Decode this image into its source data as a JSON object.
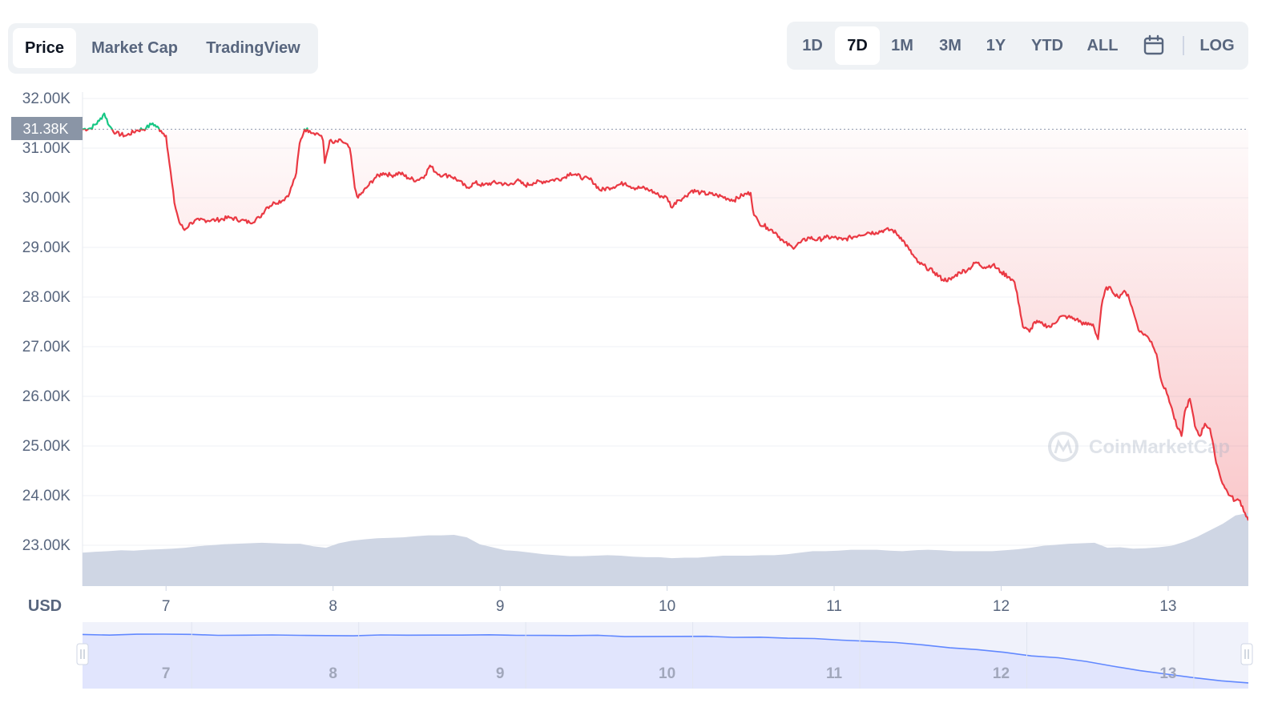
{
  "tabs": [
    {
      "label": "Price",
      "active": true
    },
    {
      "label": "Market Cap",
      "active": false
    },
    {
      "label": "TradingView",
      "active": false
    }
  ],
  "ranges": [
    {
      "label": "1D",
      "active": false
    },
    {
      "label": "7D",
      "active": true
    },
    {
      "label": "1M",
      "active": false
    },
    {
      "label": "3M",
      "active": false
    },
    {
      "label": "1Y",
      "active": false
    },
    {
      "label": "YTD",
      "active": false
    },
    {
      "label": "ALL",
      "active": false
    }
  ],
  "log_label": "LOG",
  "watermark": "CoinMarketCap",
  "currency_label": "USD",
  "current_price_label": "31.38K",
  "colors": {
    "down": "#ea3943",
    "up": "#16c784",
    "volume": "#cfd6e4",
    "navigator": "#6188ff",
    "navigator_fill": "#e1e5fd"
  },
  "chart_data": {
    "type": "line",
    "currency": "USD",
    "y_ticks": [
      "32.00K",
      "31.00K",
      "30.00K",
      "29.00K",
      "28.00K",
      "27.00K",
      "26.00K",
      "25.00K",
      "24.00K",
      "23.00K"
    ],
    "y_tick_values": [
      32000,
      31000,
      30000,
      29000,
      28000,
      27000,
      26000,
      25000,
      24000,
      23000
    ],
    "ylim": [
      22200,
      32000
    ],
    "xlim": [
      6.5,
      13.48
    ],
    "x_ticks": [
      "7",
      "8",
      "9",
      "10",
      "11",
      "12",
      "13"
    ],
    "x_tick_values": [
      7,
      8,
      9,
      10,
      11,
      12,
      13
    ],
    "reference_price": 31380,
    "series": [
      {
        "values_x": [
          6.5,
          6.55,
          6.6,
          6.63,
          6.66,
          6.7,
          6.76,
          6.82,
          6.88,
          6.92,
          6.97,
          7.0,
          7.02,
          7.05,
          7.08,
          7.11,
          7.15,
          7.2,
          7.3,
          7.38,
          7.45,
          7.5,
          7.56,
          7.6,
          7.65,
          7.7,
          7.74,
          7.78,
          7.8,
          7.83,
          7.86,
          7.9,
          7.93,
          7.94,
          7.95,
          7.98,
          8.0,
          8.05,
          8.1,
          8.13,
          8.15,
          8.2,
          8.25,
          8.3,
          8.35,
          8.4,
          8.45,
          8.5,
          8.55,
          8.58,
          8.62,
          8.66,
          8.7,
          8.75,
          8.8,
          8.85,
          8.9,
          8.95,
          9.0,
          9.05,
          9.1,
          9.15,
          9.2,
          9.3,
          9.38,
          9.42,
          9.46,
          9.5,
          9.55,
          9.6,
          9.65,
          9.7,
          9.75,
          9.8,
          9.85,
          9.9,
          9.95,
          10.0,
          10.03,
          10.06,
          10.1,
          10.15,
          10.2,
          10.3,
          10.4,
          10.45,
          10.5,
          10.52,
          10.55,
          10.6,
          10.65,
          10.7,
          10.75,
          10.8,
          10.85,
          10.9,
          10.95,
          11.0,
          11.05,
          11.1,
          11.15,
          11.2,
          11.25,
          11.3,
          11.35,
          11.4,
          11.45,
          11.5,
          11.55,
          11.6,
          11.65,
          11.7,
          11.75,
          11.8,
          11.85,
          11.9,
          11.95,
          12.0,
          12.05,
          12.08,
          12.11,
          12.13,
          12.17,
          12.2,
          12.25,
          12.3,
          12.35,
          12.4,
          12.45,
          12.5,
          12.55,
          12.58,
          12.6,
          12.63,
          12.66,
          12.7,
          12.73,
          12.76,
          12.8,
          12.83,
          12.86,
          12.9,
          12.93,
          12.96,
          13.0,
          13.03,
          13.05,
          13.08,
          13.1,
          13.13,
          13.16,
          13.19,
          13.22,
          13.25,
          13.28,
          13.31,
          13.34,
          13.37,
          13.4,
          13.43,
          13.46,
          13.48
        ],
        "values_y": [
          31380,
          31400,
          31550,
          31700,
          31450,
          31300,
          31250,
          31350,
          31400,
          31500,
          31350,
          31250,
          30700,
          29900,
          29500,
          29350,
          29500,
          29550,
          29550,
          29600,
          29550,
          29500,
          29600,
          29800,
          29900,
          29950,
          30100,
          30500,
          31100,
          31380,
          31350,
          31300,
          31250,
          31150,
          30700,
          31150,
          31100,
          31150,
          31000,
          30200,
          30000,
          30200,
          30400,
          30500,
          30450,
          30500,
          30400,
          30350,
          30450,
          30650,
          30500,
          30450,
          30450,
          30350,
          30200,
          30300,
          30250,
          30300,
          30300,
          30250,
          30350,
          30250,
          30300,
          30350,
          30400,
          30500,
          30450,
          30400,
          30350,
          30150,
          30200,
          30250,
          30300,
          30200,
          30200,
          30150,
          30050,
          30000,
          29800,
          29950,
          30000,
          30150,
          30100,
          30050,
          29950,
          30050,
          30100,
          29650,
          29500,
          29400,
          29300,
          29100,
          29000,
          29100,
          29200,
          29150,
          29200,
          29200,
          29150,
          29200,
          29250,
          29300,
          29300,
          29350,
          29350,
          29200,
          28950,
          28700,
          28600,
          28500,
          28350,
          28350,
          28500,
          28550,
          28700,
          28600,
          28650,
          28500,
          28400,
          28300,
          27800,
          27400,
          27300,
          27500,
          27450,
          27400,
          27600,
          27600,
          27550,
          27450,
          27450,
          27150,
          27800,
          28200,
          28150,
          28000,
          28100,
          28050,
          27600,
          27300,
          27250,
          27100,
          26850,
          26300,
          26000,
          25650,
          25400,
          25200,
          25700,
          25950,
          25400,
          25200,
          25450,
          25350,
          24800,
          24400,
          24150,
          24000,
          23900,
          23900,
          23650,
          23500
        ]
      }
    ],
    "volume_values": [
      22850,
      22870,
      22880,
      22900,
      22890,
      22910,
      22920,
      22930,
      22950,
      22980,
      23000,
      23020,
      23030,
      23040,
      23050,
      23040,
      23030,
      23030,
      22980,
      22950,
      23040,
      23090,
      23120,
      23140,
      23150,
      23160,
      23180,
      23200,
      23200,
      23210,
      23160,
      23020,
      22960,
      22900,
      22880,
      22850,
      22820,
      22800,
      22780,
      22780,
      22790,
      22800,
      22790,
      22770,
      22760,
      22760,
      22740,
      22750,
      22750,
      22770,
      22790,
      22790,
      22790,
      22800,
      22800,
      22820,
      22850,
      22880,
      22880,
      22890,
      22910,
      22910,
      22910,
      22890,
      22880,
      22900,
      22910,
      22900,
      22880,
      22880,
      22880,
      22880,
      22900,
      22920,
      22950,
      22990,
      23010,
      23030,
      23040,
      23050,
      22950,
      22960,
      22930,
      22940,
      22960,
      22990,
      23070,
      23170,
      23300,
      23430,
      23600,
      23650
    ],
    "navigator": {
      "x_ticks": [
        "7",
        "8",
        "9",
        "10",
        "11",
        "12",
        "13"
      ],
      "x_tick_values": [
        7,
        8,
        9,
        10,
        11,
        12,
        13
      ],
      "xlim": [
        6.5,
        13.48
      ],
      "values": [
        31380,
        31400,
        31500,
        31600,
        31550,
        31300,
        31250,
        31300,
        31400,
        31350,
        31300,
        31350,
        31400,
        31350,
        31300,
        31350,
        31300,
        31380,
        31300,
        31250,
        31150,
        31100,
        31050,
        31100,
        31050,
        31000,
        30900,
        30800,
        30600,
        30400,
        30200,
        29800,
        29300,
        28900,
        28500,
        28000,
        27500,
        27000,
        26300,
        25500,
        24800,
        24200,
        23800,
        23500
      ]
    }
  }
}
